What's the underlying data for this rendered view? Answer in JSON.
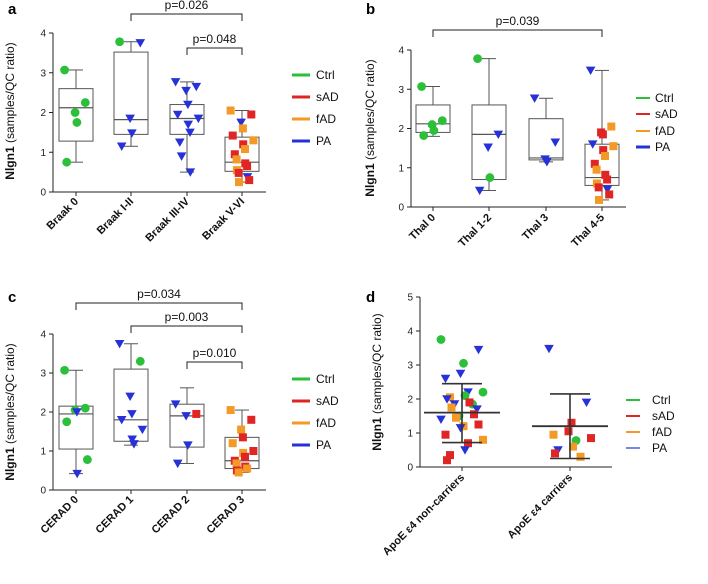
{
  "legend": [
    {
      "name": "Ctrl",
      "color": "#2bbf3a"
    },
    {
      "name": "sAD",
      "color": "#e02525"
    },
    {
      "name": "fAD",
      "color": "#f39a26"
    },
    {
      "name": "PA",
      "color": "#2632d6"
    }
  ],
  "chart_data": [
    {
      "panel": "a",
      "type": "box",
      "ylabel_bold": "Nlgn1",
      "ylabel_rest": " (samples/QC ratio)",
      "ylim": [
        0,
        4
      ],
      "yticks": [
        0,
        1,
        2,
        3,
        4
      ],
      "categories": [
        "Braak 0",
        "Braak I-II",
        "Braak III-IV",
        "Braak V-VI"
      ],
      "boxes": [
        {
          "min": 0.75,
          "q1": 1.28,
          "median": 2.12,
          "q3": 2.6,
          "max": 3.07
        },
        {
          "min": 1.15,
          "q1": 1.45,
          "median": 1.82,
          "q3": 3.52,
          "max": 3.78
        },
        {
          "min": 0.5,
          "q1": 1.45,
          "median": 1.85,
          "q3": 2.2,
          "max": 2.77
        },
        {
          "min": 0.25,
          "q1": 0.52,
          "median": 0.75,
          "q3": 1.38,
          "max": 2.05
        }
      ],
      "points": [
        [
          [
            "Ctrl",
            3.07
          ],
          [
            "Ctrl",
            2.25
          ],
          [
            "Ctrl",
            2.0
          ],
          [
            "Ctrl",
            1.75
          ],
          [
            "Ctrl",
            0.75
          ]
        ],
        [
          [
            "Ctrl",
            3.78
          ],
          [
            "PA",
            3.75
          ],
          [
            "PA",
            1.85
          ],
          [
            "PA",
            1.48
          ],
          [
            "PA",
            1.15
          ]
        ],
        [
          [
            "PA",
            2.77
          ],
          [
            "PA",
            2.65
          ],
          [
            "PA",
            2.55
          ],
          [
            "PA",
            2.2
          ],
          [
            "PA",
            1.95
          ],
          [
            "PA",
            1.85
          ],
          [
            "PA",
            1.7
          ],
          [
            "PA",
            1.5
          ],
          [
            "PA",
            1.25
          ],
          [
            "PA",
            0.9
          ],
          [
            "PA",
            0.5
          ]
        ],
        [
          [
            "fAD",
            2.05
          ],
          [
            "sAD",
            1.95
          ],
          [
            "PA",
            1.75
          ],
          [
            "fAD",
            1.6
          ],
          [
            "sAD",
            1.42
          ],
          [
            "fAD",
            1.3
          ],
          [
            "sAD",
            1.2
          ],
          [
            "fAD",
            1.08
          ],
          [
            "sAD",
            0.95
          ],
          [
            "fAD",
            0.82
          ],
          [
            "sAD",
            0.72
          ],
          [
            "sAD",
            0.65
          ],
          [
            "fAD",
            0.55
          ],
          [
            "sAD",
            0.48
          ],
          [
            "PA",
            0.38
          ],
          [
            "sAD",
            0.3
          ],
          [
            "fAD",
            0.25
          ]
        ]
      ],
      "brackets": [
        {
          "from": 1,
          "to": 3,
          "label": "p=0.026"
        },
        {
          "from": 2,
          "to": 3,
          "label": "p=0.048"
        }
      ]
    },
    {
      "panel": "b",
      "type": "box",
      "ylabel_bold": "Nlgn1",
      "ylabel_rest": " (samples/QC ratio)",
      "ylim": [
        0,
        4
      ],
      "yticks": [
        0,
        1,
        2,
        3,
        4
      ],
      "categories": [
        "Thal 0",
        "Thal 1-2",
        "Thal 3",
        "Thal 4-5"
      ],
      "boxes": [
        {
          "min": 1.8,
          "q1": 1.9,
          "median": 2.12,
          "q3": 2.6,
          "max": 3.07
        },
        {
          "min": 0.42,
          "q1": 0.7,
          "median": 1.85,
          "q3": 2.6,
          "max": 3.78
        },
        {
          "min": 1.15,
          "q1": 1.2,
          "median": 1.25,
          "q3": 2.25,
          "max": 2.77
        },
        {
          "min": 0.18,
          "q1": 0.55,
          "median": 0.75,
          "q3": 1.6,
          "max": 3.48
        }
      ],
      "points": [
        [
          [
            "Ctrl",
            3.07
          ],
          [
            "Ctrl",
            2.2
          ],
          [
            "Ctrl",
            2.1
          ],
          [
            "Ctrl",
            1.95
          ],
          [
            "Ctrl",
            1.82
          ]
        ],
        [
          [
            "Ctrl",
            3.78
          ],
          [
            "PA",
            1.85
          ],
          [
            "PA",
            1.52
          ],
          [
            "Ctrl",
            0.75
          ],
          [
            "PA",
            0.42
          ]
        ],
        [
          [
            "PA",
            2.77
          ],
          [
            "PA",
            1.65
          ],
          [
            "PA",
            1.22
          ],
          [
            "PA",
            1.15
          ]
        ],
        [
          [
            "PA",
            3.48
          ],
          [
            "fAD",
            2.05
          ],
          [
            "sAD",
            1.9
          ],
          [
            "sAD",
            1.85
          ],
          [
            "PA",
            1.6
          ],
          [
            "fAD",
            1.55
          ],
          [
            "sAD",
            1.45
          ],
          [
            "fAD",
            1.3
          ],
          [
            "sAD",
            1.1
          ],
          [
            "fAD",
            0.95
          ],
          [
            "sAD",
            0.82
          ],
          [
            "sAD",
            0.7
          ],
          [
            "fAD",
            0.6
          ],
          [
            "sAD",
            0.5
          ],
          [
            "PA",
            0.45
          ],
          [
            "sAD",
            0.32
          ],
          [
            "fAD",
            0.18
          ]
        ]
      ],
      "brackets": [
        {
          "from": 0,
          "to": 3,
          "label": "p=0.039"
        }
      ]
    },
    {
      "panel": "c",
      "type": "box",
      "ylabel_bold": "Nlgn1",
      "ylabel_rest": " (samples/QC ratio)",
      "ylim": [
        0,
        4
      ],
      "yticks": [
        0,
        1,
        2,
        3,
        4
      ],
      "categories": [
        "CERAD 0",
        "CERAD 1",
        "CERAD 2",
        "CERAD 3"
      ],
      "boxes": [
        {
          "min": 0.42,
          "q1": 1.05,
          "median": 1.95,
          "q3": 2.15,
          "max": 3.07
        },
        {
          "min": 1.15,
          "q1": 1.25,
          "median": 1.8,
          "q3": 3.1,
          "max": 3.75
        },
        {
          "min": 0.68,
          "q1": 1.1,
          "median": 1.9,
          "q3": 2.2,
          "max": 2.62
        },
        {
          "min": 0.45,
          "q1": 0.55,
          "median": 0.75,
          "q3": 1.35,
          "max": 2.05
        }
      ],
      "points": [
        [
          [
            "Ctrl",
            3.07
          ],
          [
            "Ctrl",
            2.1
          ],
          [
            "Ctrl",
            2.05
          ],
          [
            "PA",
            2.0
          ],
          [
            "Ctrl",
            1.75
          ],
          [
            "Ctrl",
            0.78
          ],
          [
            "PA",
            0.42
          ]
        ],
        [
          [
            "PA",
            3.75
          ],
          [
            "Ctrl",
            3.3
          ],
          [
            "PA",
            2.4
          ],
          [
            "PA",
            1.95
          ],
          [
            "PA",
            1.8
          ],
          [
            "PA",
            1.55
          ],
          [
            "PA",
            1.3
          ],
          [
            "PA",
            1.18
          ]
        ],
        [
          [
            "PA",
            2.2
          ],
          [
            "sAD",
            1.95
          ],
          [
            "PA",
            1.9
          ],
          [
            "PA",
            1.15
          ],
          [
            "PA",
            0.68
          ]
        ],
        [
          [
            "fAD",
            2.05
          ],
          [
            "sAD",
            1.8
          ],
          [
            "fAD",
            1.55
          ],
          [
            "sAD",
            1.35
          ],
          [
            "fAD",
            1.2
          ],
          [
            "sAD",
            1.0
          ],
          [
            "fAD",
            0.95
          ],
          [
            "sAD",
            0.85
          ],
          [
            "sAD",
            0.75
          ],
          [
            "fAD",
            0.68
          ],
          [
            "sAD",
            0.6
          ],
          [
            "fAD",
            0.55
          ],
          [
            "sAD",
            0.5
          ],
          [
            "fAD",
            0.45
          ]
        ]
      ],
      "brackets": [
        {
          "from": 0,
          "to": 3,
          "label": "p=0.034"
        },
        {
          "from": 1,
          "to": 3,
          "label": "p=0.003"
        },
        {
          "from": 2,
          "to": 3,
          "label": "p=0.010"
        }
      ]
    },
    {
      "panel": "d",
      "type": "scatter-errorbar",
      "ylabel_bold": "Nlgn1",
      "ylabel_rest": " (samples/QC ratio)",
      "ylim": [
        0,
        5
      ],
      "yticks": [
        0,
        1,
        2,
        3,
        4,
        5
      ],
      "categories": [
        "ApoE ε4 non-carriers",
        "ApoE ε4 carriers"
      ],
      "summary": [
        {
          "mean": 1.6,
          "sd_low": 0.72,
          "sd_high": 2.45
        },
        {
          "mean": 1.2,
          "sd_low": 0.25,
          "sd_high": 2.15
        }
      ],
      "points": [
        [
          [
            "Ctrl",
            3.75
          ],
          [
            "PA",
            3.45
          ],
          [
            "Ctrl",
            3.05
          ],
          [
            "PA",
            2.75
          ],
          [
            "PA",
            2.6
          ],
          [
            "Ctrl",
            2.2
          ],
          [
            "PA",
            2.2
          ],
          [
            "Ctrl",
            2.1
          ],
          [
            "fAD",
            2.05
          ],
          [
            "PA",
            2.0
          ],
          [
            "Ctrl",
            1.85
          ],
          [
            "sAD",
            1.9
          ],
          [
            "PA",
            1.85
          ],
          [
            "fAD",
            1.75
          ],
          [
            "PA",
            1.7
          ],
          [
            "sAD",
            1.55
          ],
          [
            "Ctrl",
            1.5
          ],
          [
            "fAD",
            1.45
          ],
          [
            "PA",
            1.4
          ],
          [
            "sAD",
            1.25
          ],
          [
            "fAD",
            1.2
          ],
          [
            "PA",
            1.15
          ],
          [
            "sAD",
            0.95
          ],
          [
            "fAD",
            0.8
          ],
          [
            "sAD",
            0.7
          ],
          [
            "PA",
            0.5
          ],
          [
            "sAD",
            0.35
          ],
          [
            "sAD",
            0.2
          ]
        ],
        [
          [
            "PA",
            3.48
          ],
          [
            "PA",
            1.9
          ],
          [
            "sAD",
            1.3
          ],
          [
            "sAD",
            1.05
          ],
          [
            "fAD",
            0.95
          ],
          [
            "sAD",
            0.85
          ],
          [
            "Ctrl",
            0.78
          ],
          [
            "fAD",
            0.6
          ],
          [
            "PA",
            0.5
          ],
          [
            "sAD",
            0.4
          ],
          [
            "fAD",
            0.3
          ]
        ]
      ]
    }
  ]
}
